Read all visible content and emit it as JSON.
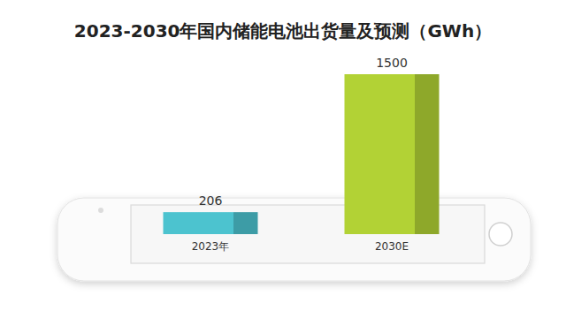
{
  "chart_data": {
    "type": "bar",
    "title": "2023-2030年国内储能电池出货量及预测（GWh）",
    "categories": [
      "2023年",
      "2030E"
    ],
    "values": [
      206,
      1500
    ],
    "colors": [
      "#4cc3cf",
      "#b2d235"
    ],
    "ylim": [
      0,
      1500
    ],
    "data_labels": true,
    "tick_labels": "x",
    "grid": false
  }
}
